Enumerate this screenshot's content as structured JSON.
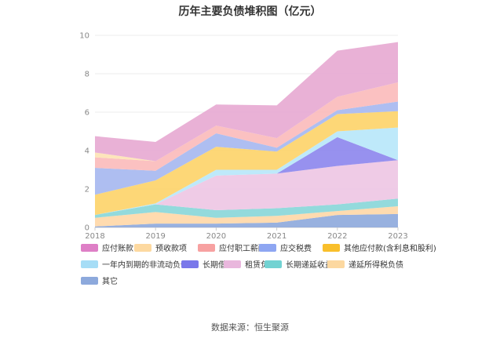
{
  "chart_data": {
    "type": "area",
    "title": "历年主要负债堆积图（亿元）",
    "xlabel": "",
    "ylabel": "",
    "categories": [
      "2018",
      "2019",
      "2020",
      "2021",
      "2022",
      "2023"
    ],
    "ylim": [
      0,
      10
    ],
    "yticks": [
      "0",
      "2",
      "4",
      "6",
      "8",
      "10"
    ],
    "grid": "horizontal",
    "legend": "bottom",
    "stacked": true,
    "series": [
      {
        "name": "其它",
        "color": "#8faadc",
        "values": [
          0.05,
          0.2,
          0.2,
          0.25,
          0.65,
          0.7
        ]
      },
      {
        "name": "递延所得税负债",
        "color": "#ffd8a8",
        "values": [
          0.45,
          0.6,
          0.3,
          0.35,
          0.2,
          0.4
        ]
      },
      {
        "name": "长期递延收益",
        "color": "#8ad7d9",
        "values": [
          0.15,
          0.4,
          0.4,
          0.4,
          0.35,
          0.4
        ]
      },
      {
        "name": "租赁负债",
        "color": "#eec7e4",
        "values": [
          0.0,
          0.0,
          1.8,
          1.8,
          2.0,
          2.0
        ]
      },
      {
        "name": "长期借款",
        "color": "#8e88ee",
        "values": [
          0.0,
          0.0,
          0.0,
          0.0,
          1.5,
          0.0
        ]
      },
      {
        "name": "一年内到期的非流动负债",
        "color": "#b9e7fa",
        "values": [
          0.0,
          0.05,
          0.3,
          0.2,
          0.3,
          1.7
        ]
      },
      {
        "name": "其他应付款(含利息和股利)",
        "color": "#fdd46b",
        "values": [
          1.05,
          1.2,
          1.2,
          0.95,
          0.9,
          0.85
        ]
      },
      {
        "name": "应交税费",
        "color": "#a7b8f0",
        "values": [
          1.4,
          0.5,
          0.7,
          0.2,
          0.2,
          0.5
        ]
      },
      {
        "name": "应付职工薪酬",
        "color": "#fbbcbc",
        "values": [
          0.55,
          0.5,
          0.4,
          0.5,
          0.7,
          1.0
        ]
      },
      {
        "name": "预收款项",
        "color": "#fde3b5",
        "values": [
          0.25,
          0.0,
          0.0,
          0.0,
          0.0,
          0.0
        ]
      },
      {
        "name": "应付账款",
        "color": "#e7aad3",
        "values": [
          0.85,
          1.0,
          1.1,
          1.7,
          2.4,
          2.1
        ]
      }
    ]
  },
  "legend_items": [
    {
      "label": "应付账款",
      "color": "#de7fc6"
    },
    {
      "label": "预收款项",
      "color": "#fdd9a0"
    },
    {
      "label": "应付职工薪酬",
      "color": "#f7a1a1"
    },
    {
      "label": "应交税费",
      "color": "#8ea6f2"
    },
    {
      "label": "其他应付款(含利息和股利)",
      "color": "#f9bf2b"
    },
    {
      "label": "一年内到期的非流动负债",
      "color": "#a6ddf6"
    },
    {
      "label": "长期借款",
      "color": "#7a78ea"
    },
    {
      "label": "租赁负债",
      "color": "#e9b7dd"
    },
    {
      "label": "长期递延收益",
      "color": "#72d2d2"
    },
    {
      "label": "递延所得税负债",
      "color": "#fcd8a0"
    },
    {
      "label": "其它",
      "color": "#8da9dc"
    }
  ],
  "source": "数据来源：恒生聚源"
}
